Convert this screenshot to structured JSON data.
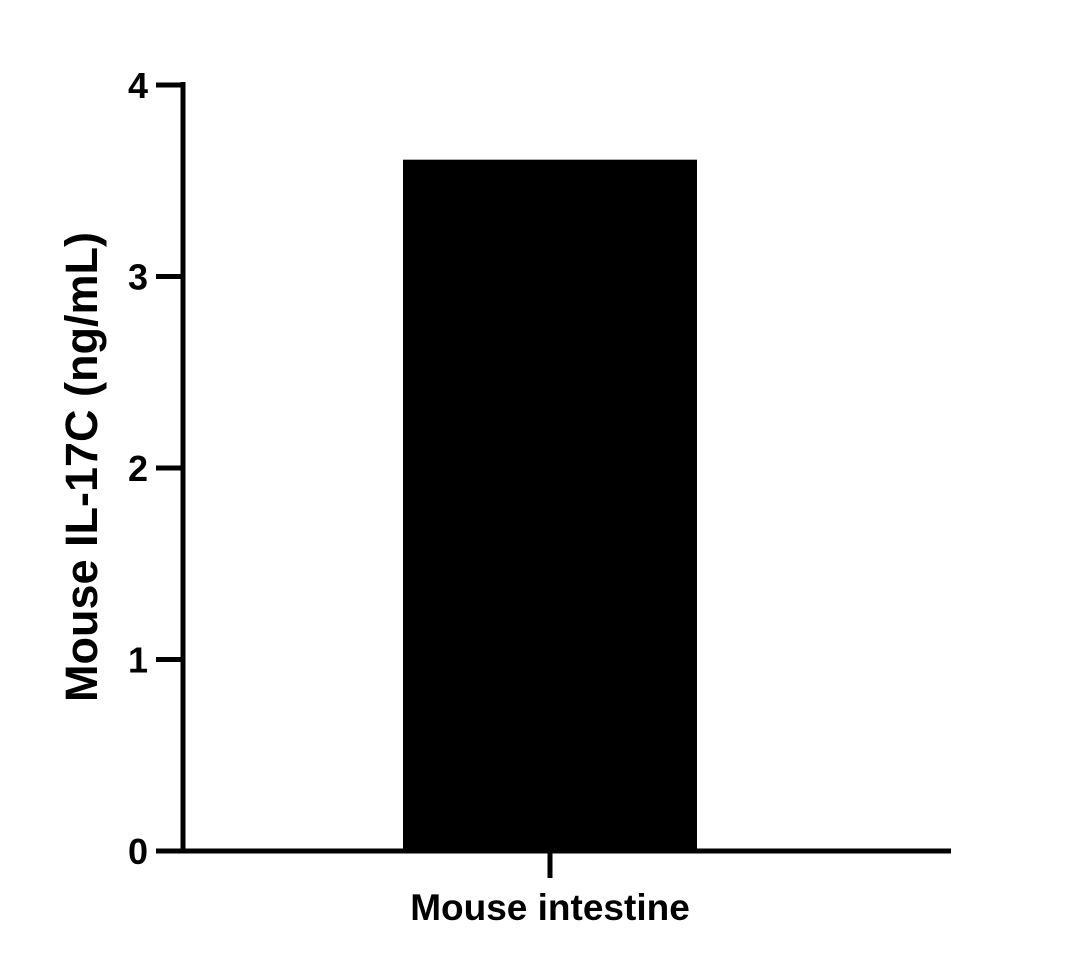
{
  "chart_data": {
    "type": "bar",
    "title": "",
    "xlabel": "",
    "ylabel": "Mouse IL-17C (ng/mL)",
    "categories": [
      "Mouse intestine"
    ],
    "values": [
      3.61
    ],
    "ylim": [
      0,
      4
    ],
    "yticks": [
      "0",
      "1",
      "2",
      "3",
      "4"
    ],
    "grid": false,
    "legend": "none",
    "colors": {
      "bar": "#000000",
      "axis": "#000000"
    }
  }
}
